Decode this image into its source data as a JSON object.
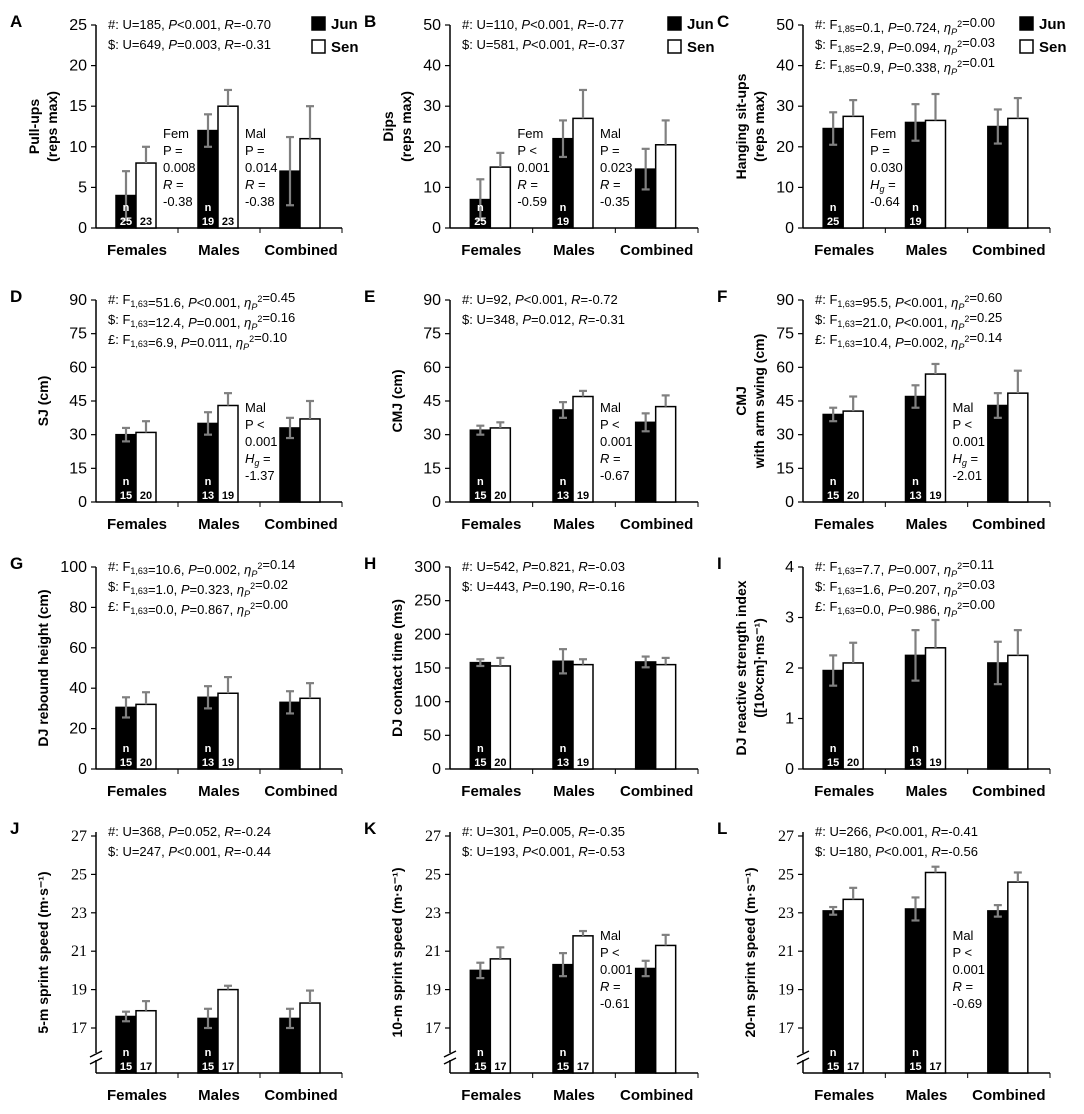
{
  "figure": {
    "categories": [
      "Females",
      "Males",
      "Combined"
    ],
    "legend": {
      "jun": "Jun",
      "sen": "Sen"
    },
    "colors": {
      "jun": "#000000",
      "sen": "#ffffff",
      "axis": "#000000",
      "error": "#808080"
    },
    "n_marker": "n"
  },
  "chart_data": [
    {
      "id": "pullups",
      "letter": "A",
      "type": "bar",
      "ylabel": [
        "Pull-ups",
        "(reps max)"
      ],
      "ylim": [
        0,
        25
      ],
      "ticks": [
        0,
        5,
        10,
        15,
        20,
        25
      ],
      "axis_break": false,
      "legend": true,
      "series": [
        {
          "name": "Jun",
          "values": [
            4,
            12,
            7
          ],
          "err": [
            3,
            2,
            4.2
          ],
          "n": [
            "25",
            "19",
            ""
          ]
        },
        {
          "name": "Sen",
          "values": [
            8,
            15,
            11
          ],
          "err": [
            2,
            2,
            4
          ],
          "n": [
            "23",
            "23",
            ""
          ]
        }
      ],
      "stats": [
        "#: U=185, P<0.001, R=-0.70",
        "$: U=649, P=0.003, R=-0.31"
      ],
      "annotations": [
        {
          "cat": 0,
          "lines": [
            "Fem",
            "P =",
            "0.008",
            "R =",
            "-0.38"
          ]
        },
        {
          "cat": 1,
          "lines": [
            "Mal",
            "P =",
            "0.014",
            "R =",
            "-0.38"
          ]
        }
      ]
    },
    {
      "id": "dips",
      "letter": "B",
      "type": "bar",
      "ylabel": [
        "Dips",
        "(reps max)"
      ],
      "ylim": [
        0,
        50
      ],
      "ticks": [
        0,
        10,
        20,
        30,
        40,
        50
      ],
      "axis_break": false,
      "legend": true,
      "series": [
        {
          "name": "Jun",
          "values": [
            7,
            22,
            14.5
          ],
          "err": [
            5,
            4.5,
            5
          ],
          "n": [
            "25",
            "19",
            ""
          ]
        },
        {
          "name": "Sen",
          "values": [
            15,
            27,
            20.5
          ],
          "err": [
            3.5,
            7,
            6
          ]
        }
      ],
      "stats": [
        "#: U=110, P<0.001, R=-0.77",
        "$: U=581, P<0.001, R=-0.37"
      ],
      "annotations": [
        {
          "cat": 0,
          "lines": [
            "Fem",
            "P <",
            "0.001",
            "R =",
            "-0.59"
          ]
        },
        {
          "cat": 1,
          "lines": [
            "Mal",
            "P =",
            "0.023",
            "R =",
            "-0.35"
          ]
        }
      ]
    },
    {
      "id": "hanging",
      "letter": "C",
      "type": "bar",
      "ylabel": [
        "Hanging sit-ups",
        "(reps max)"
      ],
      "ylim": [
        0,
        50
      ],
      "ticks": [
        0,
        10,
        20,
        30,
        40,
        50
      ],
      "axis_break": false,
      "legend": true,
      "series": [
        {
          "name": "Jun",
          "values": [
            24.5,
            26,
            25
          ],
          "err": [
            4,
            4.5,
            4.2
          ],
          "n": [
            "25",
            "19",
            ""
          ]
        },
        {
          "name": "Sen",
          "values": [
            27.5,
            26.5,
            27
          ],
          "err": [
            4,
            6.5,
            5
          ]
        }
      ],
      "stats": [
        "#: F1,85=0.1, P=0.724, ηP2=0.00",
        "$: F1,85=2.9, P=0.094, ηP2=0.03",
        "£: F1,85=0.9, P=0.338, ηP2=0.01"
      ],
      "annotations": [
        {
          "cat": 0,
          "lines": [
            "Fem",
            "P =",
            "0.030",
            "Hg =",
            "-0.64"
          ]
        }
      ]
    },
    {
      "id": "sj",
      "letter": "D",
      "type": "bar",
      "ylabel": [
        "SJ (cm)"
      ],
      "ylim": [
        0,
        90
      ],
      "ticks": [
        0,
        15,
        30,
        45,
        60,
        75,
        90
      ],
      "axis_break": false,
      "legend": false,
      "series": [
        {
          "name": "Jun",
          "values": [
            30,
            35,
            33
          ],
          "err": [
            3,
            5,
            4.5
          ],
          "n": [
            "15",
            "13",
            ""
          ]
        },
        {
          "name": "Sen",
          "values": [
            31,
            43,
            37
          ],
          "err": [
            5,
            5.5,
            8
          ],
          "n": [
            "20",
            "19",
            ""
          ]
        }
      ],
      "stats": [
        "#: F1,63=51.6, P<0.001, ηP2=0.45",
        "$: F1,63=12.4, P=0.001, ηP2=0.16",
        "£: F1,63=6.9, P=0.011, ηP2=0.10"
      ],
      "annotations": [
        {
          "cat": 1,
          "lines": [
            "Mal",
            "P <",
            "0.001",
            "Hg =",
            "-1.37"
          ]
        }
      ]
    },
    {
      "id": "cmj",
      "letter": "E",
      "type": "bar",
      "ylabel": [
        "CMJ (cm)"
      ],
      "ylim": [
        0,
        90
      ],
      "ticks": [
        0,
        15,
        30,
        45,
        60,
        75,
        90
      ],
      "axis_break": false,
      "legend": false,
      "series": [
        {
          "name": "Jun",
          "values": [
            32,
            41,
            35.5
          ],
          "err": [
            2,
            3.5,
            4
          ],
          "n": [
            "15",
            "13",
            ""
          ]
        },
        {
          "name": "Sen",
          "values": [
            33,
            47,
            42.5
          ],
          "err": [
            2.5,
            2.5,
            5
          ],
          "n": [
            "20",
            "19",
            ""
          ]
        }
      ],
      "stats": [
        "#: U=92, P<0.001, R=-0.72",
        "$: U=348, P=0.012, R=-0.31"
      ],
      "annotations": [
        {
          "cat": 1,
          "lines": [
            "Mal",
            "P <",
            "0.001",
            "R =",
            "-0.67"
          ]
        }
      ]
    },
    {
      "id": "cmjarm",
      "letter": "F",
      "type": "bar",
      "ylabel": [
        "CMJ",
        "with arm swing (cm)"
      ],
      "ylim": [
        0,
        90
      ],
      "ticks": [
        0,
        15,
        30,
        45,
        60,
        75,
        90
      ],
      "axis_break": false,
      "legend": false,
      "series": [
        {
          "name": "Jun",
          "values": [
            39,
            47,
            43
          ],
          "err": [
            3,
            5,
            5.5
          ],
          "n": [
            "15",
            "13",
            ""
          ]
        },
        {
          "name": "Sen",
          "values": [
            40.5,
            57,
            48.5
          ],
          "err": [
            6.5,
            4.5,
            10
          ],
          "n": [
            "20",
            "19",
            ""
          ]
        }
      ],
      "stats": [
        "#: F1,63=95.5, P<0.001, ηP2=0.60",
        "$: F1,63=21.0, P<0.001, ηP2=0.25",
        "£: F1,63=10.4, P=0.002, ηP2=0.14"
      ],
      "annotations": [
        {
          "cat": 1,
          "lines": [
            "Mal",
            "P <",
            "0.001",
            "Hg =",
            "-2.01"
          ]
        }
      ]
    },
    {
      "id": "djrebound",
      "letter": "G",
      "type": "bar",
      "ylabel": [
        "DJ rebound height (cm)"
      ],
      "ylim": [
        0,
        100
      ],
      "ticks": [
        0,
        20,
        40,
        60,
        80,
        100
      ],
      "axis_break": false,
      "legend": false,
      "series": [
        {
          "name": "Jun",
          "values": [
            30.5,
            35.5,
            33
          ],
          "err": [
            5,
            5.5,
            5.5
          ],
          "n": [
            "15",
            "13",
            ""
          ]
        },
        {
          "name": "Sen",
          "values": [
            32,
            37.5,
            35
          ],
          "err": [
            6,
            8,
            7.5
          ],
          "n": [
            "20",
            "19",
            ""
          ]
        }
      ],
      "stats": [
        "#: F1,63=10.6, P=0.002, ηP2=0.14",
        "$: F1,63=1.0, P=0.323, ηP2=0.02",
        "£: F1,63=0.0, P=0.867, ηP2=0.00"
      ],
      "annotations": []
    },
    {
      "id": "djcontact",
      "letter": "H",
      "type": "bar",
      "ylabel": [
        "DJ contact time (ms)"
      ],
      "ylim": [
        0,
        300
      ],
      "ticks": [
        0,
        50,
        100,
        150,
        200,
        250,
        300
      ],
      "axis_break": false,
      "legend": false,
      "series": [
        {
          "name": "Jun",
          "values": [
            158,
            160,
            159
          ],
          "err": [
            5,
            18,
            8
          ],
          "n": [
            "15",
            "13",
            ""
          ]
        },
        {
          "name": "Sen",
          "values": [
            153,
            155,
            155
          ],
          "err": [
            12,
            8,
            10
          ],
          "n": [
            "20",
            "19",
            ""
          ]
        }
      ],
      "stats": [
        "#: U=542, P=0.821, R=-0.03",
        "$: U=443, P=0.190, R=-0.16"
      ],
      "annotations": []
    },
    {
      "id": "djrsi",
      "letter": "I",
      "type": "bar",
      "ylabel": [
        "DJ reactive strength index",
        "([10×cm]·ms⁻¹)"
      ],
      "ylim": [
        0,
        4
      ],
      "ticks": [
        0,
        1,
        2,
        3,
        4
      ],
      "axis_break": false,
      "legend": false,
      "series": [
        {
          "name": "Jun",
          "values": [
            1.95,
            2.25,
            2.1
          ],
          "err": [
            0.3,
            0.5,
            0.42
          ],
          "n": [
            "15",
            "13",
            ""
          ]
        },
        {
          "name": "Sen",
          "values": [
            2.1,
            2.4,
            2.25
          ],
          "err": [
            0.4,
            0.55,
            0.5
          ],
          "n": [
            "20",
            "19",
            ""
          ]
        }
      ],
      "stats": [
        "#: F1,63=7.7, P=0.007, ηP2=0.11",
        "$: F1,63=1.6, P=0.207, ηP2=0.03",
        "£: F1,63=0.0, P=0.986, ηP2=0.00"
      ],
      "annotations": []
    },
    {
      "id": "sprint5",
      "letter": "J",
      "type": "bar",
      "ylabel": [
        "5-m sprint speed (m·s⁻¹)"
      ],
      "ylim": [
        15,
        27
      ],
      "ticks": [
        17,
        19,
        21,
        23,
        25,
        27
      ],
      "axis_break": true,
      "legend": false,
      "series": [
        {
          "name": "Jun",
          "values": [
            17.6,
            17.5,
            17.5
          ],
          "err": [
            0.25,
            0.5,
            0.5
          ],
          "n": [
            "15",
            "15",
            ""
          ]
        },
        {
          "name": "Sen",
          "values": [
            17.9,
            19,
            18.3
          ],
          "err": [
            0.5,
            0.2,
            0.65
          ],
          "n": [
            "17",
            "17",
            ""
          ]
        }
      ],
      "stats": [
        "#: U=368, P=0.052, R=-0.24",
        "$: U=247, P<0.001, R=-0.44"
      ],
      "annotations": []
    },
    {
      "id": "sprint10",
      "letter": "K",
      "type": "bar",
      "ylabel": [
        "10-m sprint speed (m·s⁻¹)"
      ],
      "ylim": [
        15,
        27
      ],
      "ticks": [
        17,
        19,
        21,
        23,
        25,
        27
      ],
      "axis_break": true,
      "legend": false,
      "series": [
        {
          "name": "Jun",
          "values": [
            20,
            20.3,
            20.1
          ],
          "err": [
            0.4,
            0.6,
            0.4
          ],
          "n": [
            "15",
            "15",
            ""
          ]
        },
        {
          "name": "Sen",
          "values": [
            20.6,
            21.8,
            21.3
          ],
          "err": [
            0.6,
            0.25,
            0.55
          ],
          "n": [
            "17",
            "17",
            ""
          ]
        }
      ],
      "stats": [
        "#: U=301, P=0.005, R=-0.35",
        "$: U=193, P<0.001, R=-0.53"
      ],
      "annotations": [
        {
          "cat": 1,
          "lines": [
            "Mal",
            "P <",
            "0.001",
            "R =",
            "-0.61"
          ]
        }
      ]
    },
    {
      "id": "sprint20",
      "letter": "L",
      "type": "bar",
      "ylabel": [
        "20-m sprint speed (m·s⁻¹)"
      ],
      "ylim": [
        15,
        27
      ],
      "ticks": [
        17,
        19,
        21,
        23,
        25,
        27
      ],
      "axis_break": true,
      "legend": false,
      "series": [
        {
          "name": "Jun",
          "values": [
            23.1,
            23.2,
            23.1
          ],
          "err": [
            0.2,
            0.6,
            0.3
          ],
          "n": [
            "15",
            "15",
            ""
          ]
        },
        {
          "name": "Sen",
          "values": [
            23.7,
            25.1,
            24.6
          ],
          "err": [
            0.6,
            0.3,
            0.5
          ],
          "n": [
            "17",
            "17",
            ""
          ]
        }
      ],
      "stats": [
        "#: U=266, P<0.001, R=-0.41",
        "$: U=180, P<0.001, R=-0.56"
      ],
      "annotations": [
        {
          "cat": 1,
          "lines": [
            "Mal",
            "P <",
            "0.001",
            "R =",
            "-0.69"
          ]
        }
      ]
    }
  ]
}
